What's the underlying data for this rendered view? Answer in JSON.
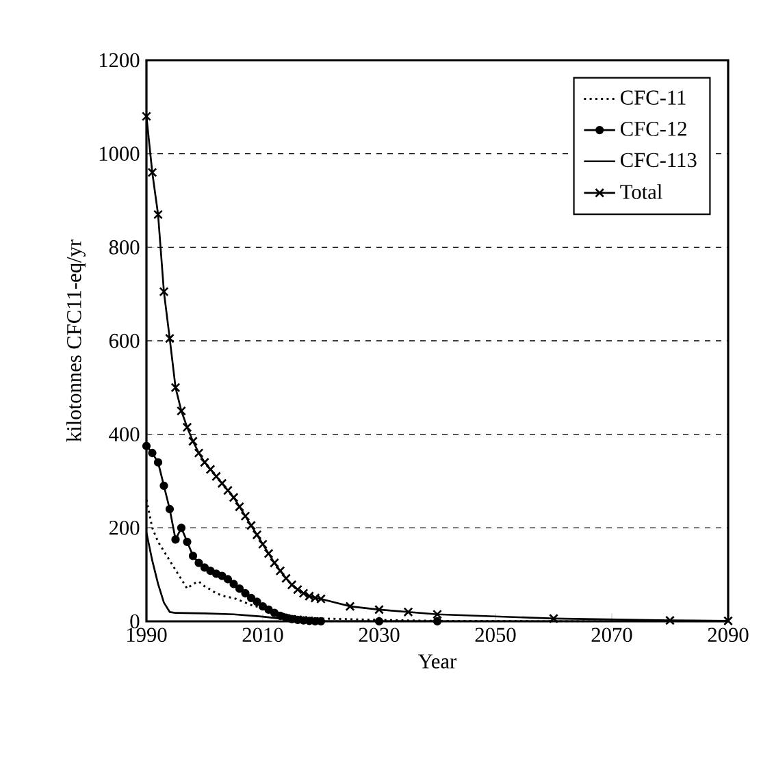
{
  "chart_data": {
    "type": "line",
    "xlabel": "Year",
    "ylabel": "kilotonnes CFC11-eq/yr",
    "xlim": [
      1990,
      2090
    ],
    "xticks": [
      1990,
      2010,
      2030,
      2050,
      2070,
      2090
    ],
    "ylim": [
      0,
      1200
    ],
    "yticks": [
      0,
      200,
      400,
      600,
      800,
      1000,
      1200
    ],
    "grid": "y",
    "legend": "top right",
    "series": [
      {
        "name": "CFC-11",
        "color": "#000000",
        "line_style": "dotted",
        "marker": "none",
        "x": [
          1990,
          1991,
          1992,
          1993,
          1994,
          1995,
          1996,
          1997,
          1998,
          1999,
          2000,
          2001,
          2002,
          2003,
          2004,
          2005,
          2006,
          2007,
          2008,
          2010,
          2012,
          2015,
          2020,
          2030,
          2040,
          2060,
          2090
        ],
        "values": [
          260,
          200,
          170,
          150,
          130,
          110,
          90,
          70,
          80,
          85,
          75,
          68,
          60,
          55,
          52,
          50,
          45,
          40,
          35,
          28,
          20,
          12,
          6,
          3,
          1,
          0,
          0
        ]
      },
      {
        "name": "CFC-12",
        "color": "#000000",
        "line_style": "solid",
        "marker": "circle",
        "x": [
          1990,
          1991,
          1992,
          1993,
          1994,
          1995,
          1996,
          1997,
          1998,
          1999,
          2000,
          2001,
          2002,
          2003,
          2004,
          2005,
          2006,
          2007,
          2008,
          2009,
          2010,
          2011,
          2012,
          2013,
          2014,
          2015,
          2016,
          2017,
          2018,
          2019,
          2020,
          2030,
          2040
        ],
        "values": [
          375,
          360,
          340,
          290,
          240,
          175,
          200,
          170,
          140,
          125,
          115,
          108,
          102,
          97,
          90,
          80,
          70,
          60,
          50,
          42,
          32,
          25,
          18,
          12,
          8,
          5,
          3,
          2,
          1,
          0,
          0,
          0,
          0
        ]
      },
      {
        "name": "CFC-113",
        "color": "#000000",
        "line_style": "solid",
        "marker": "none",
        "x": [
          1990,
          1991,
          1992,
          1993,
          1994,
          1995,
          2000,
          2005,
          2010,
          2015,
          2020,
          2090
        ],
        "values": [
          190,
          130,
          80,
          40,
          20,
          18,
          17,
          15,
          10,
          3,
          0,
          0
        ]
      },
      {
        "name": "Total",
        "color": "#000000",
        "line_style": "solid",
        "marker": "cross",
        "x": [
          1990,
          1991,
          1992,
          1993,
          1994,
          1995,
          1996,
          1997,
          1998,
          1999,
          2000,
          2001,
          2002,
          2003,
          2004,
          2005,
          2006,
          2007,
          2008,
          2009,
          2010,
          2011,
          2012,
          2013,
          2014,
          2015,
          2016,
          2017,
          2018,
          2019,
          2020,
          2025,
          2030,
          2035,
          2040,
          2060,
          2080,
          2090
        ],
        "values": [
          1080,
          960,
          870,
          705,
          605,
          500,
          450,
          415,
          385,
          360,
          340,
          325,
          310,
          295,
          280,
          265,
          245,
          225,
          205,
          185,
          165,
          145,
          125,
          108,
          92,
          78,
          68,
          60,
          54,
          50,
          48,
          32,
          25,
          20,
          15,
          6,
          2,
          1
        ]
      }
    ]
  }
}
